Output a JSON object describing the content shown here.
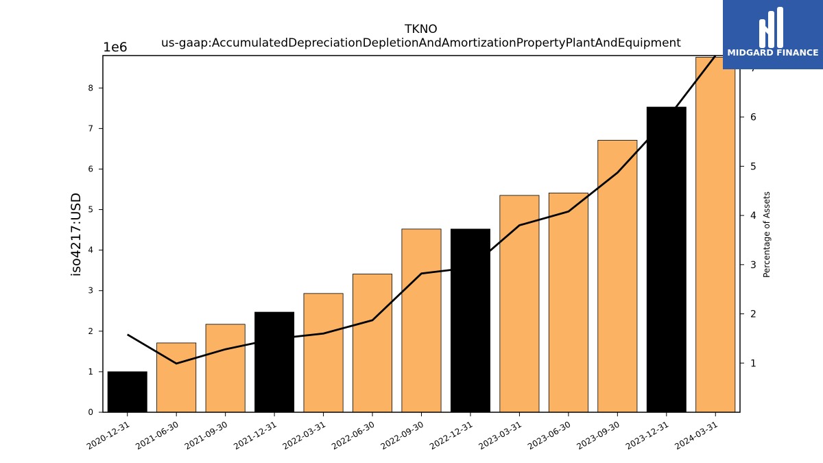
{
  "chart_data": {
    "type": "bar",
    "title": "TKNO",
    "subtitle": "us-gaap:AccumulatedDepreciationDepletionAndAmortizationPropertyPlantAndEquipment",
    "ylabel": "iso4217:USD",
    "y_scale_label": "1e6",
    "y2label": "Percentage of Assets",
    "ylim": [
      0,
      8.8
    ],
    "y2lim": [
      0,
      7.25
    ],
    "yticks": [
      "0",
      "1",
      "2",
      "3",
      "4",
      "5",
      "6",
      "7",
      "8"
    ],
    "y2ticks": [
      "1",
      "2",
      "3",
      "4",
      "5",
      "6",
      "7"
    ],
    "categories": [
      "2020-12-31",
      "2021-06-30",
      "2021-09-30",
      "2021-12-31",
      "2022-03-31",
      "2022-06-30",
      "2022-09-30",
      "2022-12-31",
      "2023-03-31",
      "2023-06-30",
      "2023-09-30",
      "2023-12-31",
      "2024-03-31"
    ],
    "values": [
      1.0,
      1.71,
      2.17,
      2.47,
      2.93,
      3.41,
      4.52,
      4.52,
      5.35,
      5.41,
      6.71,
      7.53,
      8.76
    ],
    "bar_kind": [
      "annual",
      "quarterly",
      "quarterly",
      "annual",
      "quarterly",
      "quarterly",
      "quarterly",
      "annual",
      "quarterly",
      "quarterly",
      "quarterly",
      "annual",
      "quarterly"
    ],
    "colors": {
      "annual": "#000000",
      "quarterly": "#fbb363",
      "line": "#000000"
    },
    "line_series": {
      "values": [
        1.58,
        0.99,
        1.28,
        1.49,
        1.6,
        1.87,
        2.82,
        2.94,
        3.8,
        4.08,
        4.87,
        5.95,
        7.25
      ]
    },
    "grid": false
  },
  "logo": {
    "text": "MIDGARD FINANCE",
    "icon": "midgard-logo-icon"
  }
}
